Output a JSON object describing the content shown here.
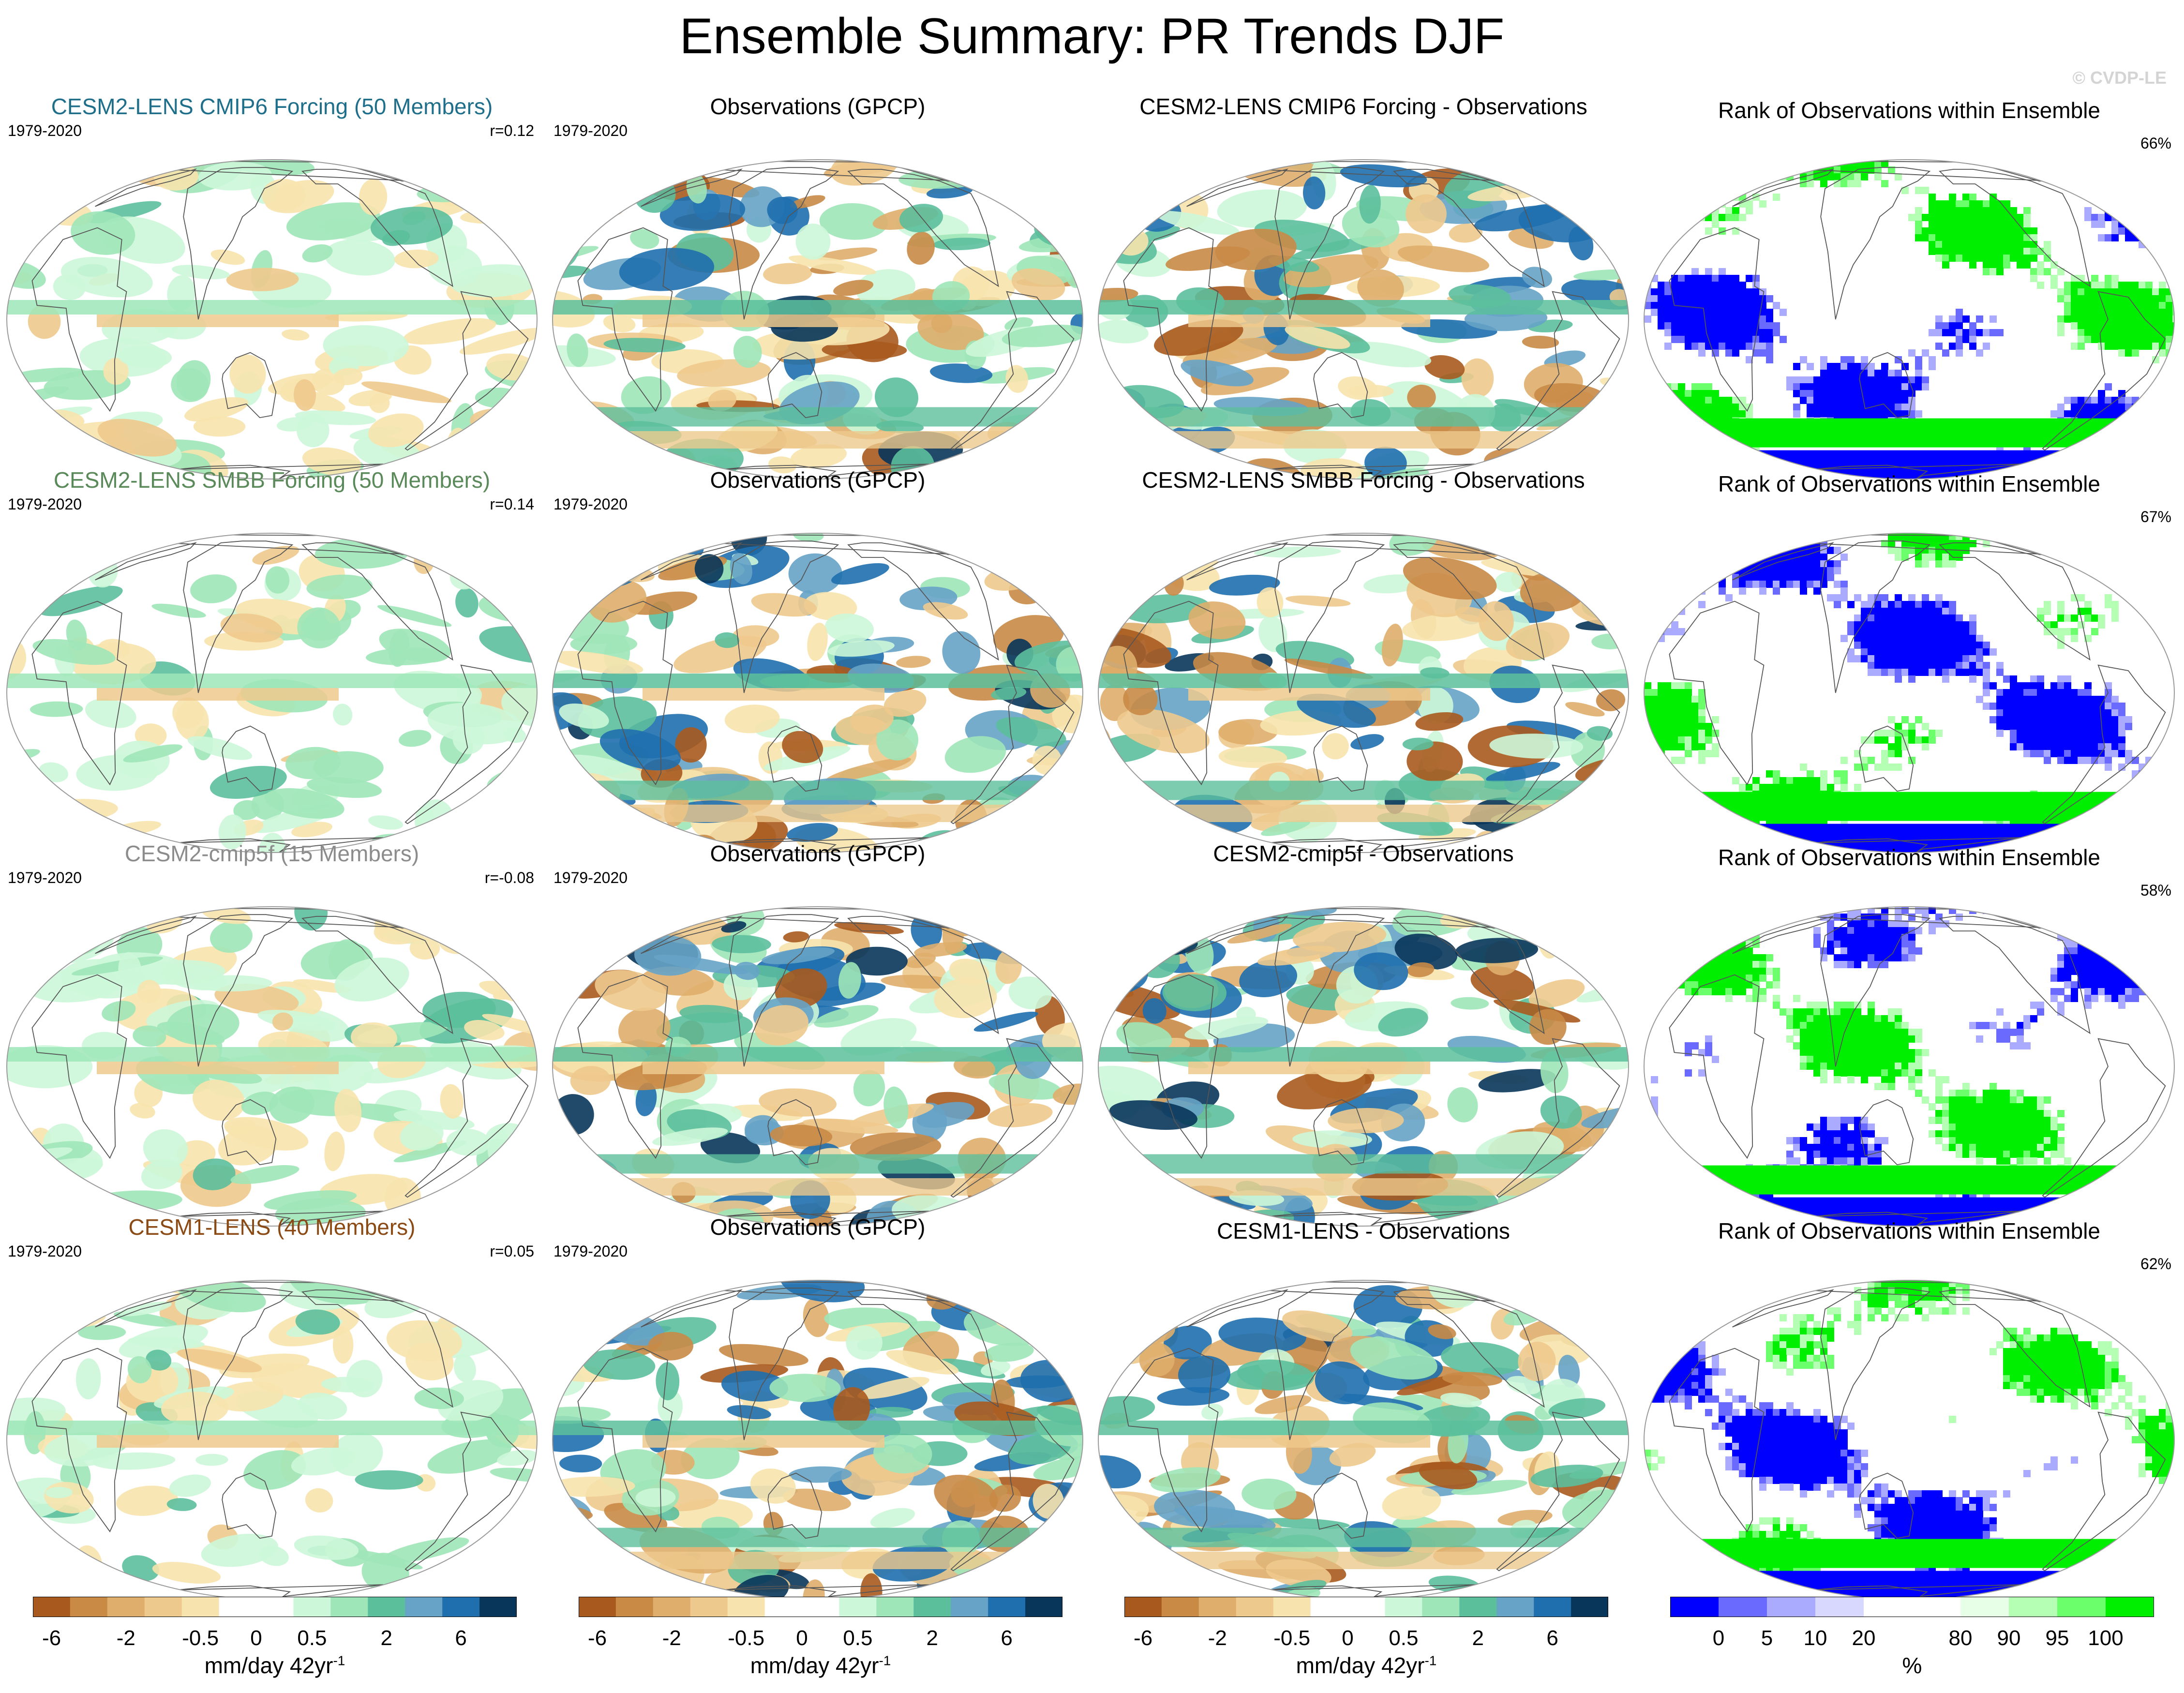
{
  "title": "Ensemble Summary: PR Trends DJF",
  "credit": "© CVDP-LE",
  "colors": {
    "title_cesm2_cmip6": "#1f6f8b",
    "title_cesm2_smbb": "#5a8a5a",
    "title_cesm2_cmip5f": "#8c8c8c",
    "title_cesm1": "#8b4a13",
    "trend_colormap": [
      "#a85a1e",
      "#c98a46",
      "#dfae6c",
      "#eec98d",
      "#f7e3ad",
      "#ffffff",
      "#ffffff",
      "#ccf7d8",
      "#9ee6b8",
      "#5cbf9c",
      "#66a3c6",
      "#1f6fae",
      "#08355a"
    ],
    "rank_colormap": [
      "#0000ff",
      "#6a6aff",
      "#aaaaff",
      "#d8d8ff",
      "#ffffff",
      "#ffffff",
      "#e6ffe6",
      "#b4ffb4",
      "#6cff6c",
      "#00ee00"
    ]
  },
  "chart_data": [
    {
      "row": 1,
      "col": 1,
      "type": "heatmap",
      "title": "CESM2-LENS CMIP6 Forcing (50 Members)",
      "period": "1979-2020",
      "stat": "r=0.12",
      "field": "ensemble mean PR trend"
    },
    {
      "row": 1,
      "col": 2,
      "type": "heatmap",
      "title": "Observations (GPCP)",
      "period": "1979-2020",
      "stat": "",
      "field": "observed PR trend"
    },
    {
      "row": 1,
      "col": 3,
      "type": "heatmap",
      "title": "CESM2-LENS CMIP6 Forcing - Observations",
      "period": "",
      "stat": "",
      "field": "difference"
    },
    {
      "row": 1,
      "col": 4,
      "type": "heatmap",
      "title": "Rank of Observations within Ensemble",
      "period": "",
      "stat": "66%",
      "field": "rank"
    },
    {
      "row": 2,
      "col": 1,
      "type": "heatmap",
      "title": "CESM2-LENS SMBB Forcing (50 Members)",
      "period": "1979-2020",
      "stat": "r=0.14",
      "field": "ensemble mean PR trend"
    },
    {
      "row": 2,
      "col": 2,
      "type": "heatmap",
      "title": "Observations (GPCP)",
      "period": "1979-2020",
      "stat": "",
      "field": "observed PR trend"
    },
    {
      "row": 2,
      "col": 3,
      "type": "heatmap",
      "title": "CESM2-LENS SMBB Forcing - Observations",
      "period": "",
      "stat": "",
      "field": "difference"
    },
    {
      "row": 2,
      "col": 4,
      "type": "heatmap",
      "title": "Rank of Observations within Ensemble",
      "period": "",
      "stat": "67%",
      "field": "rank"
    },
    {
      "row": 3,
      "col": 1,
      "type": "heatmap",
      "title": "CESM2-cmip5f (15 Members)",
      "period": "1979-2020",
      "stat": "r=-0.08",
      "field": "ensemble mean PR trend"
    },
    {
      "row": 3,
      "col": 2,
      "type": "heatmap",
      "title": "Observations (GPCP)",
      "period": "1979-2020",
      "stat": "",
      "field": "observed PR trend"
    },
    {
      "row": 3,
      "col": 3,
      "type": "heatmap",
      "title": "CESM2-cmip5f - Observations",
      "period": "",
      "stat": "",
      "field": "difference"
    },
    {
      "row": 3,
      "col": 4,
      "type": "heatmap",
      "title": "Rank of Observations within Ensemble",
      "period": "",
      "stat": "58%",
      "field": "rank"
    },
    {
      "row": 4,
      "col": 1,
      "type": "heatmap",
      "title": "CESM1-LENS (40 Members)",
      "period": "1979-2020",
      "stat": "r=0.05",
      "field": "ensemble mean PR trend"
    },
    {
      "row": 4,
      "col": 2,
      "type": "heatmap",
      "title": "Observations (GPCP)",
      "period": "1979-2020",
      "stat": "",
      "field": "observed PR trend"
    },
    {
      "row": 4,
      "col": 3,
      "type": "heatmap",
      "title": "CESM1-LENS - Observations",
      "period": "",
      "stat": "",
      "field": "difference"
    },
    {
      "row": 4,
      "col": 4,
      "type": "heatmap",
      "title": "Rank of Observations within Ensemble",
      "period": "",
      "stat": "62%",
      "field": "rank"
    }
  ],
  "colorbars": [
    {
      "label_main": "mm/day 42yr",
      "label_sup": "-1",
      "ticks": [
        "-6",
        "-2",
        "-0.5",
        "0",
        "0.5",
        "2",
        "6"
      ]
    },
    {
      "label_main": "mm/day 42yr",
      "label_sup": "-1",
      "ticks": [
        "-6",
        "-2",
        "-0.5",
        "0",
        "0.5",
        "2",
        "6"
      ]
    },
    {
      "label_main": "mm/day 42yr",
      "label_sup": "-1",
      "ticks": [
        "-6",
        "-2",
        "-0.5",
        "0",
        "0.5",
        "2",
        "6"
      ]
    },
    {
      "label_main": "%",
      "label_sup": "",
      "ticks": [
        "0",
        "5",
        "10",
        "20",
        "80",
        "90",
        "95",
        "100"
      ]
    }
  ]
}
